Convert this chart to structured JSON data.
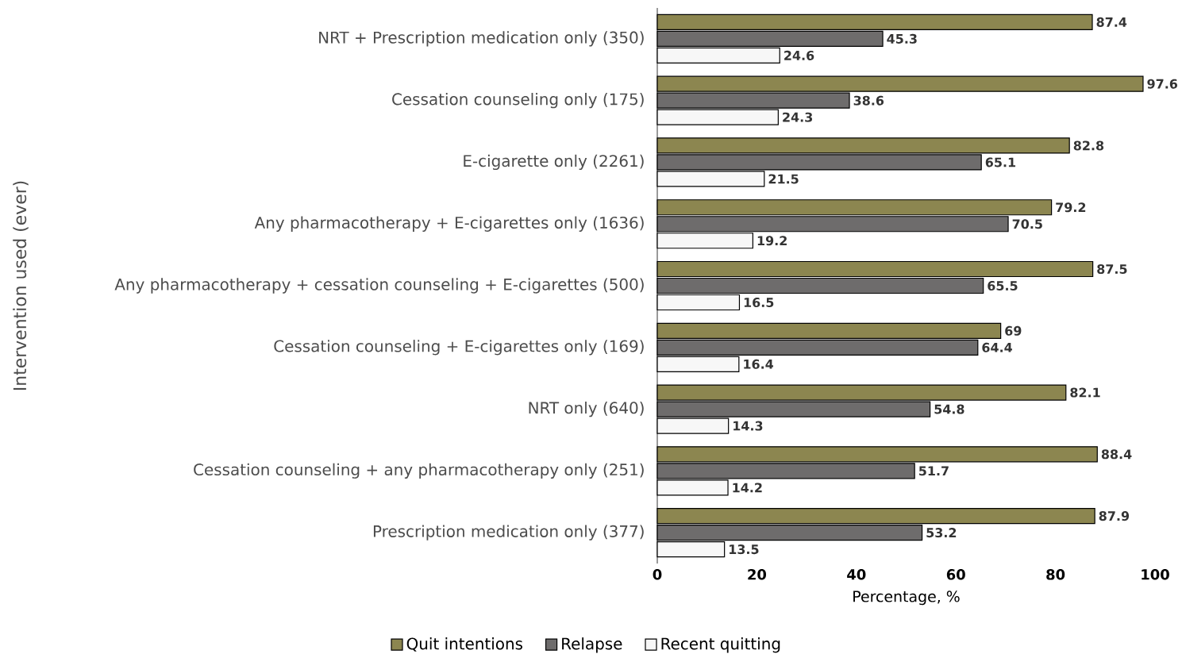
{
  "chart_data": {
    "type": "bar",
    "orientation": "horizontal",
    "ylabel": "Intervention used (ever)",
    "xlabel": "Percentage, %",
    "categories": [
      "NRT + Prescription medication only (350)",
      "Cessation counseling only (175)",
      "E-cigarette only (2261)",
      "Any pharmacotherapy + E-cigarettes only (1636)",
      "Any pharmacotherapy + cessation counseling + E-cigarettes  (500)",
      "Cessation counseling + E-cigarettes only (169)",
      "NRT only (640)",
      "Cessation counseling + any pharmacotherapy only (251)",
      "Prescription medication only (377)"
    ],
    "series": [
      {
        "name": "Quit intentions",
        "color": "#8c8650",
        "values": [
          87.4,
          97.6,
          82.8,
          79.2,
          87.5,
          69,
          82.1,
          88.4,
          87.9
        ]
      },
      {
        "name": "Relapse",
        "color": "#6e6c6c",
        "values": [
          45.3,
          38.6,
          65.1,
          70.5,
          65.5,
          64.4,
          54.8,
          51.7,
          53.2
        ]
      },
      {
        "name": "Recent quitting",
        "color": "#f7f7f7",
        "values": [
          24.6,
          24.3,
          21.5,
          19.2,
          16.5,
          16.4,
          14.3,
          14.2,
          13.5
        ]
      }
    ],
    "xlim": [
      0,
      100
    ],
    "xticks": [
      0,
      20,
      40,
      60,
      80,
      100
    ],
    "data_labels": true,
    "legend": "bottom",
    "grid": false
  }
}
